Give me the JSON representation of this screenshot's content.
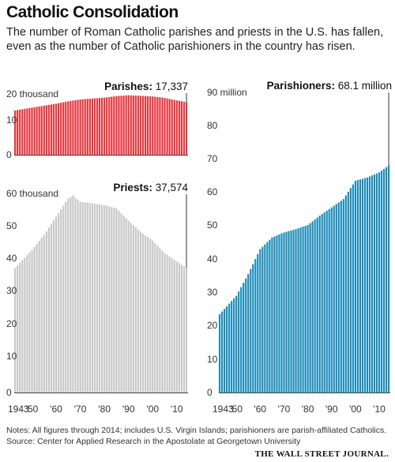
{
  "title": "Catholic Consolidation",
  "subtitle": "The number of Roman Catholic parishes and priests in the U.S. has fallen, even as the number of Catholic parishioners in the country has risen.",
  "notes": "Notes: All figures through 2014; includes U.S. Virgin Islands; parishioners are parish-affiliated Catholics.",
  "source": "Source: Center for Applied Research in the Apostolate at Georgetown University",
  "credit": "THE WALL STREET JOURNAL.",
  "colors": {
    "parishes": "#e8343b",
    "priests": "#c8c8c8",
    "parishioners": "#1a8ab8"
  },
  "chart_data": [
    {
      "type": "bar",
      "label": "Parishes",
      "latest_label": "17,337",
      "unit_label": "20 thousand",
      "yticks": [
        "20 thousand",
        "10",
        "0"
      ],
      "ylim": [
        0,
        20
      ],
      "x_start": 1943,
      "x_end": 2014,
      "keyframes": [
        [
          1943,
          14.6
        ],
        [
          1950,
          15.5
        ],
        [
          1960,
          16.8
        ],
        [
          1965,
          17.6
        ],
        [
          1970,
          18.2
        ],
        [
          1980,
          18.8
        ],
        [
          1985,
          19.3
        ],
        [
          1990,
          19.6
        ],
        [
          2000,
          19.2
        ],
        [
          2005,
          18.7
        ],
        [
          2010,
          17.9
        ],
        [
          2014,
          17.337
        ]
      ]
    },
    {
      "type": "bar",
      "label": "Priests",
      "latest_label": "37,574",
      "unit_label": "60 thousand",
      "yticks": [
        "60 thousand",
        "50",
        "40",
        "30",
        "20",
        "10",
        "0"
      ],
      "ylim": [
        0,
        60
      ],
      "x_start": 1943,
      "x_end": 2014,
      "keyframes": [
        [
          1943,
          37.5
        ],
        [
          1950,
          43
        ],
        [
          1955,
          47.5
        ],
        [
          1960,
          53
        ],
        [
          1965,
          58.5
        ],
        [
          1967,
          59.4
        ],
        [
          1970,
          57.5
        ],
        [
          1975,
          57
        ],
        [
          1980,
          56.5
        ],
        [
          1985,
          55.5
        ],
        [
          1990,
          51.8
        ],
        [
          1995,
          48.5
        ],
        [
          2000,
          45.8
        ],
        [
          2005,
          42
        ],
        [
          2010,
          39.5
        ],
        [
          2014,
          37.574
        ]
      ],
      "xticks": [
        "1943",
        "'50",
        "'60",
        "'70",
        "'80",
        "'90",
        "'00",
        "'10"
      ]
    },
    {
      "type": "bar",
      "label": "Parishioners",
      "latest_label": "68.1 million",
      "unit_label": "90 million",
      "yticks": [
        "90 million",
        "80",
        "70",
        "60",
        "50",
        "40",
        "30",
        "20",
        "10",
        "0"
      ],
      "ylim": [
        0,
        90
      ],
      "x_start": 1943,
      "x_end": 2014,
      "keyframes": [
        [
          1943,
          23.5
        ],
        [
          1950,
          29
        ],
        [
          1955,
          35.5
        ],
        [
          1960,
          43
        ],
        [
          1965,
          46.5
        ],
        [
          1970,
          48
        ],
        [
          1975,
          49
        ],
        [
          1980,
          50.2
        ],
        [
          1985,
          53
        ],
        [
          1990,
          55.5
        ],
        [
          1995,
          58
        ],
        [
          2000,
          63.5
        ],
        [
          2005,
          64.5
        ],
        [
          2010,
          66
        ],
        [
          2014,
          68.1
        ]
      ],
      "xticks": [
        "1943",
        "'50",
        "'60",
        "'70",
        "'80",
        "'90",
        "'00",
        "'10"
      ]
    }
  ]
}
